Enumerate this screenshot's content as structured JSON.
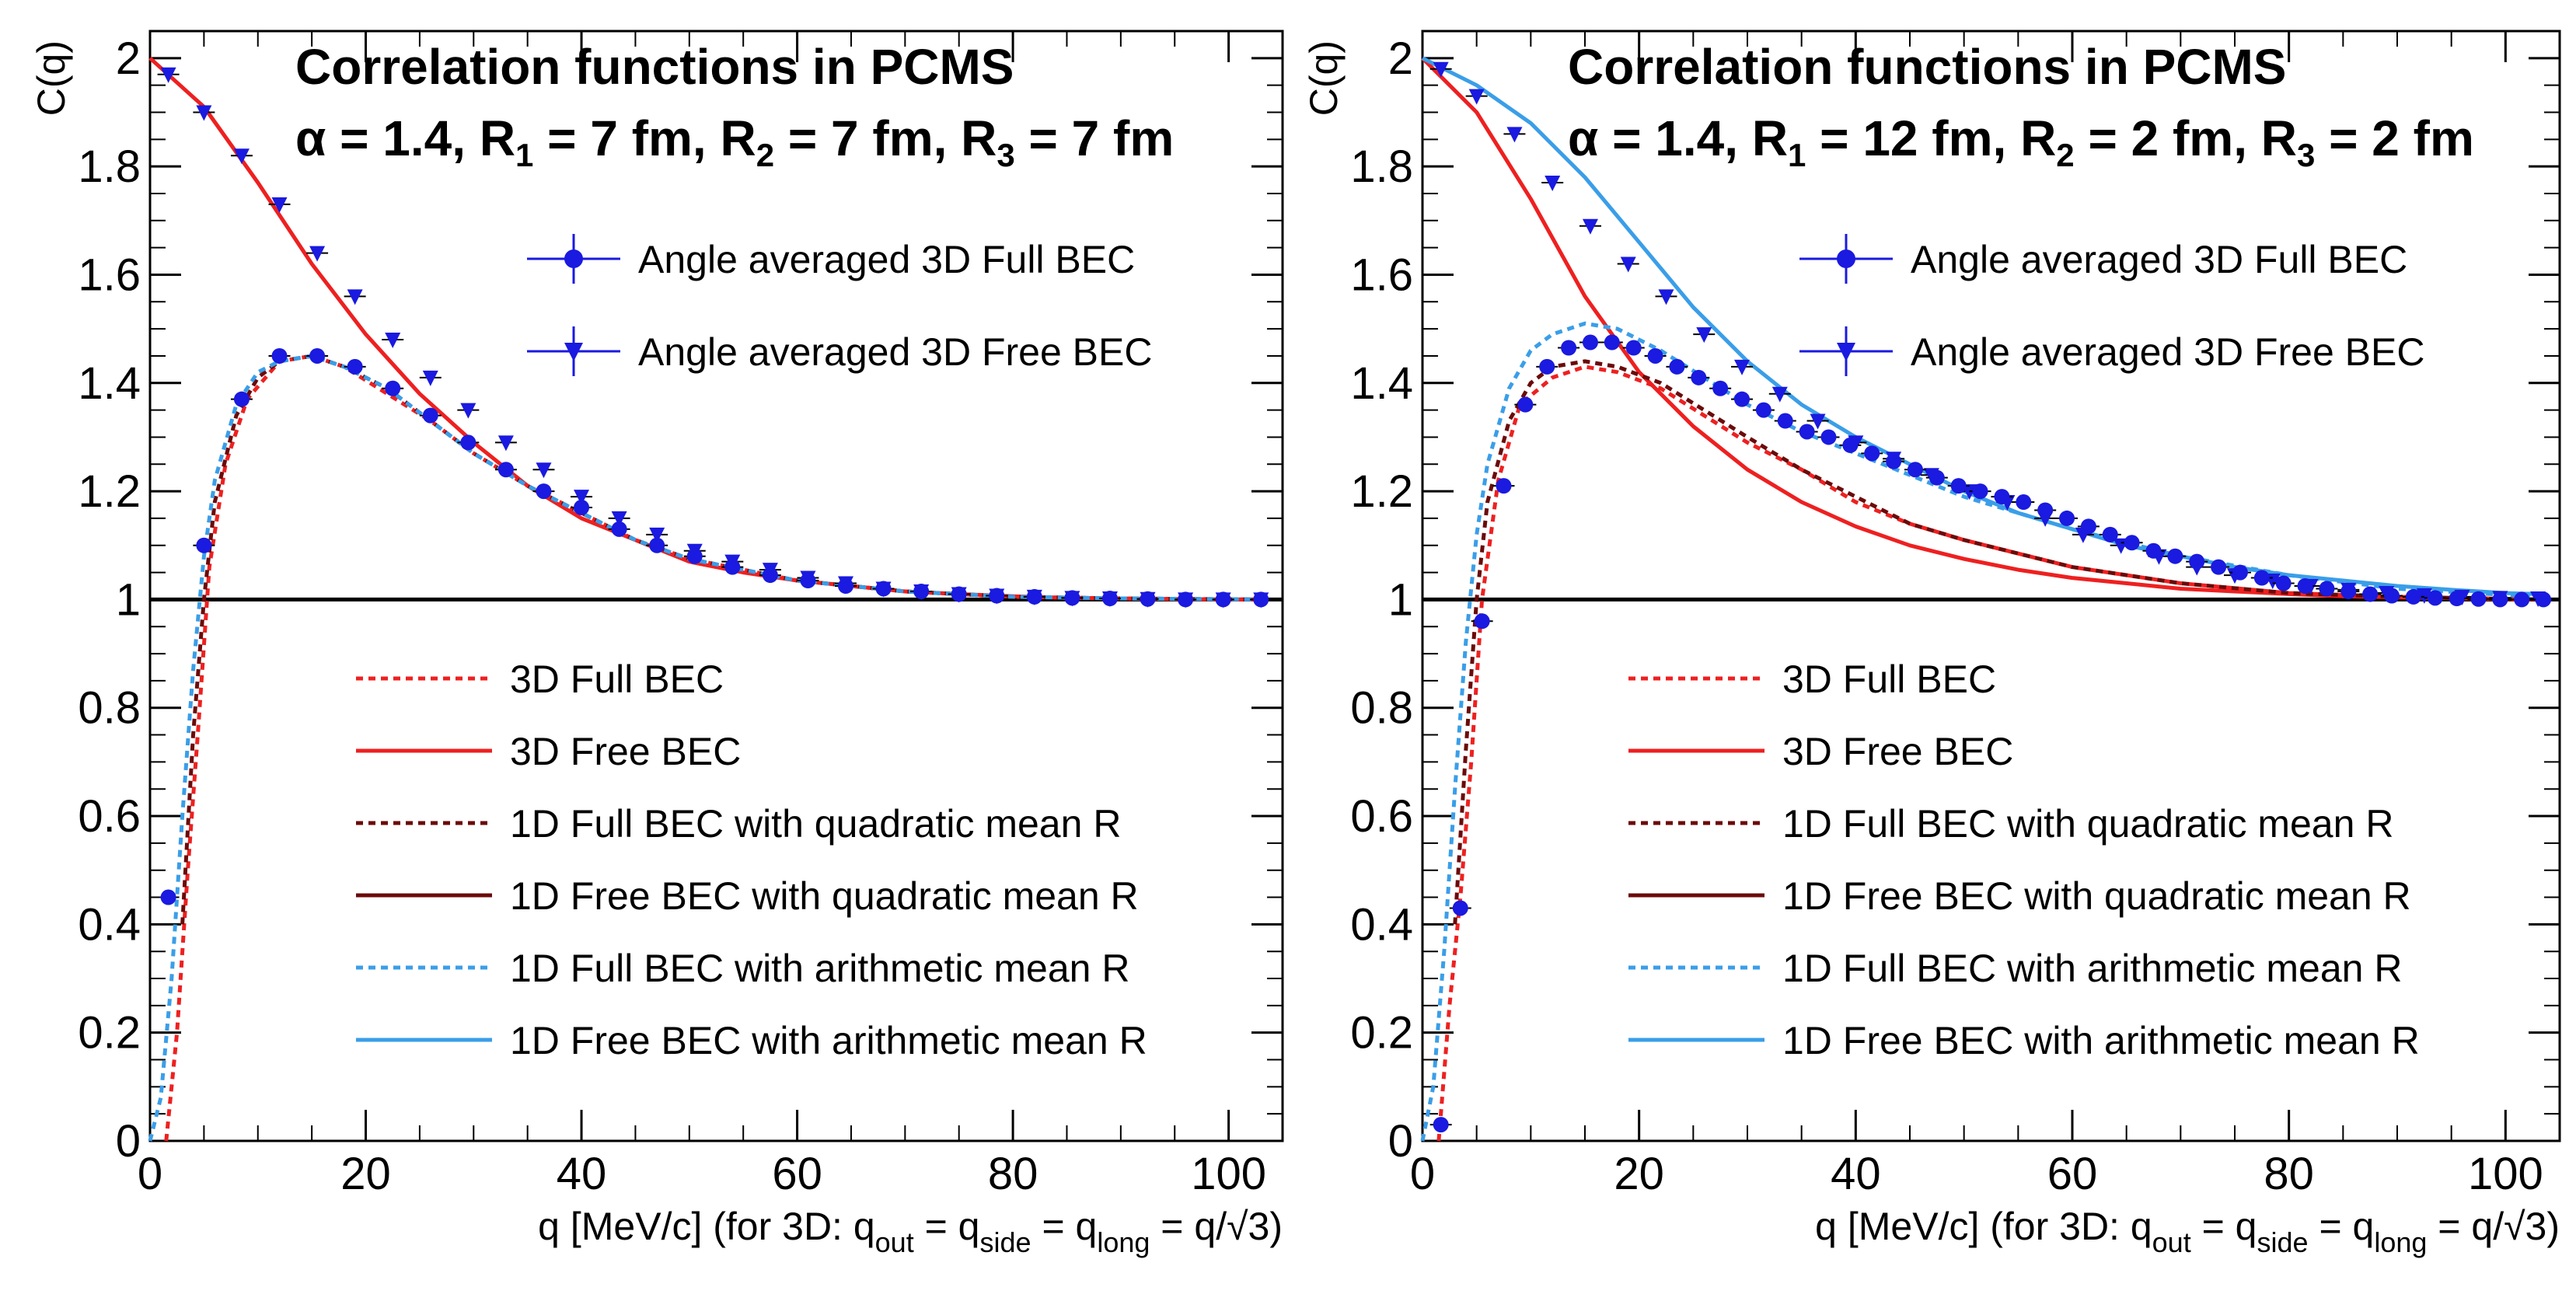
{
  "colors": {
    "red": "#ee2020",
    "darkred": "#6b0a0a",
    "lightblue": "#3a9ee8",
    "blue": "#1a1ae0",
    "black": "#000000"
  },
  "chart_data": [
    {
      "type": "line",
      "title": "Correlation functions in PCMS",
      "params": {
        "alpha": "1.4",
        "R1": "7",
        "R2": "7",
        "R3": "7"
      },
      "xlabel": "q [MeV/c] (for 3D: q_out = q_side = q_long = q/√3)",
      "ylabel": "C(q)",
      "xlim": [
        0,
        105
      ],
      "ylim": [
        0,
        2.05
      ],
      "xticks": [
        0,
        20,
        40,
        60,
        80,
        100
      ],
      "yticks": [
        0,
        0.2,
        0.4,
        0.6,
        0.8,
        1,
        1.2,
        1.4,
        1.6,
        1.8,
        2
      ],
      "marker_legend": [
        "Angle averaged 3D Full BEC",
        "Angle averaged 3D Free BEC"
      ],
      "line_legend": [
        "3D Full BEC",
        "3D Free BEC",
        "1D Full BEC with quadratic mean R",
        "1D Free BEC with quadratic mean R",
        "1D Full BEC with arithmetic mean R",
        "1D Free BEC with arithmetic mean R"
      ],
      "series": [
        {
          "name": "3D Free BEC",
          "style": "solid",
          "color": "red",
          "x": [
            0,
            5,
            10,
            15,
            20,
            25,
            30,
            35,
            40,
            45,
            50,
            55,
            60,
            65,
            70,
            75,
            80,
            85,
            90,
            100,
            103
          ],
          "y": [
            2.0,
            1.91,
            1.77,
            1.62,
            1.49,
            1.38,
            1.29,
            1.21,
            1.15,
            1.11,
            1.07,
            1.05,
            1.035,
            1.025,
            1.015,
            1.01,
            1.006,
            1.003,
            1.002,
            1.0,
            1.0
          ]
        },
        {
          "name": "3D Full BEC",
          "style": "dotted",
          "color": "red",
          "x": [
            1.5,
            2.5,
            3.5,
            4.5,
            5.5,
            7,
            9,
            12,
            15,
            18,
            22,
            26,
            30,
            35,
            40,
            45,
            50,
            60,
            70,
            80,
            90,
            103
          ],
          "y": [
            0,
            0.2,
            0.5,
            0.77,
            1.06,
            1.25,
            1.37,
            1.44,
            1.45,
            1.43,
            1.38,
            1.33,
            1.27,
            1.21,
            1.16,
            1.11,
            1.075,
            1.035,
            1.015,
            1.005,
            1.002,
            1.0
          ]
        },
        {
          "name": "1D Full BEC with quadratic mean R",
          "style": "dotted",
          "color": "darkred",
          "x": [
            3,
            4,
            5,
            6,
            8,
            10,
            12,
            15,
            18,
            22,
            26,
            30,
            35,
            40,
            45,
            50,
            60,
            70,
            80,
            90,
            103
          ],
          "y": [
            0.4,
            0.75,
            1.0,
            1.18,
            1.34,
            1.41,
            1.44,
            1.45,
            1.43,
            1.39,
            1.33,
            1.27,
            1.21,
            1.16,
            1.11,
            1.075,
            1.035,
            1.015,
            1.005,
            1.002,
            1.0
          ]
        },
        {
          "name": "1D Full BEC with arithmetic mean R",
          "style": "dotted",
          "color": "lightblue",
          "x": [
            0,
            1,
            2,
            3,
            4,
            5,
            6,
            8,
            10,
            12,
            15,
            18,
            22,
            26,
            30,
            35,
            40,
            45,
            50,
            60,
            70,
            80,
            90,
            103
          ],
          "y": [
            0.0,
            0.08,
            0.3,
            0.6,
            0.87,
            1.08,
            1.22,
            1.36,
            1.42,
            1.44,
            1.45,
            1.43,
            1.39,
            1.33,
            1.27,
            1.21,
            1.16,
            1.11,
            1.075,
            1.035,
            1.015,
            1.005,
            1.002,
            1.0
          ]
        },
        {
          "name": "Angle averaged 3D Free BEC",
          "style": "marker-tri",
          "color": "blue",
          "x": [
            1.7,
            5,
            8.5,
            12,
            15.5,
            19,
            22.5,
            26,
            29.5,
            33,
            36.5,
            40,
            43.5,
            47,
            50.5,
            54,
            57.5,
            61,
            64.5,
            68,
            71.5,
            75,
            78.5,
            82,
            85.5,
            89,
            92.5,
            96,
            99.5,
            103
          ],
          "y": [
            1.97,
            1.9,
            1.82,
            1.73,
            1.64,
            1.56,
            1.48,
            1.41,
            1.35,
            1.29,
            1.24,
            1.19,
            1.15,
            1.12,
            1.09,
            1.07,
            1.055,
            1.04,
            1.03,
            1.02,
            1.015,
            1.01,
            1.007,
            1.005,
            1.003,
            1.002,
            1.001,
            1.0,
            1.0,
            1.0
          ]
        },
        {
          "name": "Angle averaged 3D Full BEC",
          "style": "marker-circle",
          "color": "blue",
          "x": [
            1.7,
            5,
            8.5,
            12,
            15.5,
            19,
            22.5,
            26,
            29.5,
            33,
            36.5,
            40,
            43.5,
            47,
            50.5,
            54,
            57.5,
            61,
            64.5,
            68,
            71.5,
            75,
            78.5,
            82,
            85.5,
            89,
            92.5,
            96,
            99.5,
            103
          ],
          "y": [
            0.45,
            1.1,
            1.37,
            1.45,
            1.45,
            1.43,
            1.39,
            1.34,
            1.29,
            1.24,
            1.2,
            1.17,
            1.13,
            1.1,
            1.08,
            1.06,
            1.045,
            1.035,
            1.025,
            1.02,
            1.015,
            1.01,
            1.007,
            1.005,
            1.003,
            1.002,
            1.001,
            1.0,
            1.0,
            1.0
          ]
        }
      ]
    },
    {
      "type": "line",
      "title": "Correlation functions in PCMS",
      "params": {
        "alpha": "1.4",
        "R1": "12",
        "R2": "2",
        "R3": "2"
      },
      "xlabel": "q [MeV/c] (for 3D: q_out = q_side = q_long = q/√3)",
      "ylabel": "C(q)",
      "xlim": [
        0,
        105
      ],
      "ylim": [
        0,
        2.05
      ],
      "xticks": [
        0,
        20,
        40,
        60,
        80,
        100
      ],
      "yticks": [
        0,
        0.2,
        0.4,
        0.6,
        0.8,
        1,
        1.2,
        1.4,
        1.6,
        1.8,
        2
      ],
      "marker_legend": [
        "Angle averaged 3D Full BEC",
        "Angle averaged 3D Free BEC"
      ],
      "line_legend": [
        "3D Full BEC",
        "3D Free BEC",
        "1D Full BEC with quadratic mean R",
        "1D Free BEC with quadratic mean R",
        "1D Full BEC with arithmetic mean R",
        "1D Free BEC with arithmetic mean R"
      ],
      "series": [
        {
          "name": "3D Free BEC",
          "style": "solid",
          "color": "red",
          "x": [
            0,
            5,
            10,
            15,
            20,
            25,
            30,
            35,
            40,
            45,
            50,
            55,
            60,
            65,
            70,
            75,
            80,
            85,
            90,
            100,
            103
          ],
          "y": [
            2.0,
            1.9,
            1.74,
            1.56,
            1.42,
            1.32,
            1.24,
            1.18,
            1.135,
            1.1,
            1.075,
            1.055,
            1.04,
            1.03,
            1.02,
            1.015,
            1.01,
            1.006,
            1.004,
            1.001,
            1.0
          ]
        },
        {
          "name": "1D Free BEC with arithmetic mean R",
          "style": "solid",
          "color": "lightblue",
          "x": [
            0,
            5,
            10,
            15,
            20,
            25,
            30,
            35,
            40,
            45,
            50,
            55,
            60,
            65,
            70,
            75,
            80,
            85,
            90,
            95,
            100,
            103
          ],
          "y": [
            2.0,
            1.95,
            1.88,
            1.78,
            1.66,
            1.54,
            1.44,
            1.36,
            1.3,
            1.25,
            1.2,
            1.16,
            1.13,
            1.1,
            1.08,
            1.06,
            1.045,
            1.035,
            1.025,
            1.018,
            1.012,
            1.01
          ]
        },
        {
          "name": "3D Full BEC",
          "style": "dotted",
          "color": "red",
          "x": [
            1.5,
            2.5,
            3.5,
            4.5,
            5.5,
            7,
            9,
            12,
            15,
            18,
            22,
            26,
            30,
            35,
            40,
            45,
            50,
            55,
            60,
            70,
            80,
            90,
            103
          ],
          "y": [
            0,
            0.25,
            0.45,
            0.7,
            1.0,
            1.22,
            1.36,
            1.41,
            1.43,
            1.42,
            1.39,
            1.34,
            1.29,
            1.24,
            1.18,
            1.14,
            1.11,
            1.085,
            1.06,
            1.03,
            1.012,
            1.005,
            1.0
          ]
        },
        {
          "name": "1D Full BEC with quadratic mean R",
          "style": "dotted",
          "color": "darkred",
          "x": [
            3,
            4,
            5,
            6,
            8,
            10,
            12,
            15,
            18,
            22,
            26,
            30,
            35,
            40,
            45,
            50,
            55,
            60,
            70,
            80,
            90,
            103
          ],
          "y": [
            0.4,
            0.72,
            1.0,
            1.18,
            1.33,
            1.4,
            1.43,
            1.44,
            1.43,
            1.4,
            1.35,
            1.3,
            1.24,
            1.19,
            1.14,
            1.11,
            1.085,
            1.06,
            1.03,
            1.012,
            1.005,
            1.0
          ]
        },
        {
          "name": "1D Full BEC with arithmetic mean R",
          "style": "dotted",
          "color": "lightblue",
          "x": [
            0,
            1,
            2,
            3,
            4,
            5,
            6,
            8,
            10,
            12,
            15,
            18,
            22,
            26,
            30,
            35,
            40,
            45,
            50,
            55,
            60,
            70,
            80,
            90,
            103
          ],
          "y": [
            0.0,
            0.1,
            0.35,
            0.65,
            0.92,
            1.12,
            1.25,
            1.39,
            1.46,
            1.49,
            1.51,
            1.5,
            1.46,
            1.41,
            1.36,
            1.31,
            1.27,
            1.23,
            1.19,
            1.16,
            1.13,
            1.08,
            1.045,
            1.02,
            1.005
          ]
        },
        {
          "name": "Angle averaged 3D Free BEC",
          "style": "marker-tri",
          "color": "blue",
          "x": [
            1.7,
            5,
            8.5,
            12,
            15.5,
            19,
            22.5,
            26,
            29.5,
            33,
            36.5,
            40,
            43.5,
            47,
            50.5,
            54,
            57.5,
            61,
            64.5,
            68,
            71.5,
            75,
            78.5,
            82,
            85.5,
            89,
            92.5,
            96,
            99.5,
            103
          ],
          "y": [
            1.98,
            1.93,
            1.86,
            1.77,
            1.69,
            1.62,
            1.56,
            1.49,
            1.43,
            1.38,
            1.33,
            1.29,
            1.26,
            1.23,
            1.2,
            1.18,
            1.15,
            1.12,
            1.1,
            1.08,
            1.06,
            1.045,
            1.035,
            1.025,
            1.018,
            1.012,
            1.008,
            1.005,
            1.003,
            1.002
          ]
        },
        {
          "name": "Angle averaged 3D Full BEC",
          "style": "marker-circle",
          "color": "blue",
          "x": [
            1.7,
            3.5,
            5.5,
            7.5,
            9.5,
            11.5,
            13.5,
            15.5,
            17.5,
            19.5,
            21.5,
            23.5,
            25.5,
            27.5,
            29.5,
            31.5,
            33.5,
            35.5,
            37.5,
            39.5,
            41.5,
            43.5,
            45.5,
            47.5,
            49.5,
            51.5,
            53.5,
            55.5,
            57.5,
            59.5,
            61.5,
            63.5,
            65.5,
            67.5,
            69.5,
            71.5,
            73.5,
            75.5,
            77.5,
            79.5,
            81.5,
            83.5,
            85.5,
            87.5,
            89.5,
            91.5,
            93.5,
            95.5,
            97.5,
            99.5,
            101.5,
            103.5
          ],
          "y": [
            0.03,
            0.43,
            0.96,
            1.21,
            1.36,
            1.43,
            1.465,
            1.475,
            1.475,
            1.465,
            1.45,
            1.43,
            1.41,
            1.39,
            1.37,
            1.35,
            1.33,
            1.31,
            1.3,
            1.285,
            1.27,
            1.255,
            1.24,
            1.225,
            1.21,
            1.2,
            1.19,
            1.18,
            1.165,
            1.15,
            1.135,
            1.12,
            1.105,
            1.09,
            1.08,
            1.07,
            1.06,
            1.05,
            1.04,
            1.03,
            1.025,
            1.02,
            1.015,
            1.01,
            1.007,
            1.005,
            1.003,
            1.002,
            1.001,
            1.0,
            1.0,
            1.0
          ]
        }
      ]
    }
  ]
}
